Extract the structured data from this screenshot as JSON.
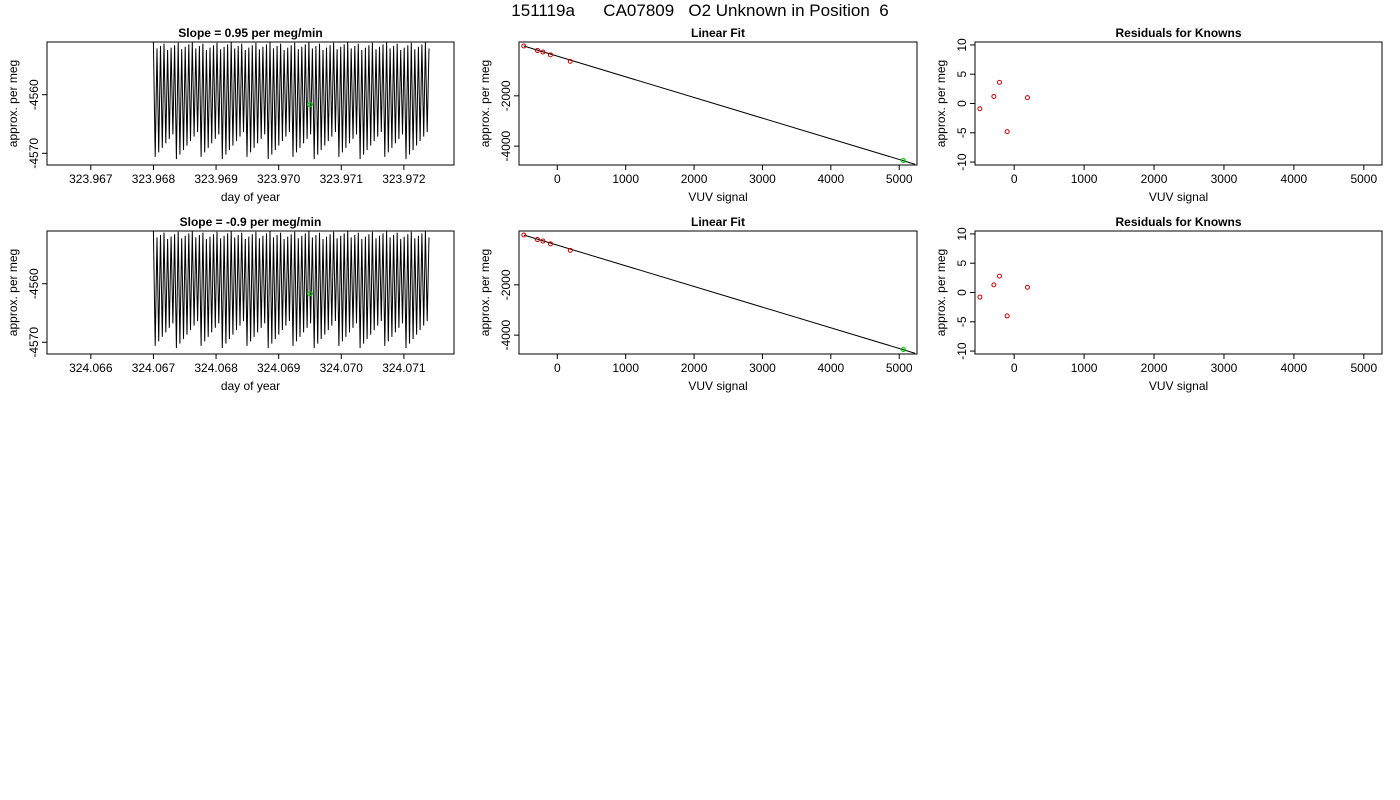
{
  "page": {
    "title": "151119a      CA07809   O2 Unknown in Position  6"
  },
  "colors": {
    "trace": "#000000",
    "unknown_point": "#00cc00",
    "known_point": "#cc0000",
    "frame": "#000000",
    "background": "#ffffff"
  },
  "chart_data": [
    {
      "type": "line",
      "title": "Slope =  0.95  per meg/min",
      "xlabel": "day of year",
      "ylabel": "approx. per meg",
      "xlim": [
        323.9663,
        323.9728
      ],
      "ylim": [
        -4572,
        -4551
      ],
      "x_ticks": [
        "323.967",
        "323.968",
        "323.969",
        "323.970",
        "323.971",
        "323.972"
      ],
      "y_ticks": [
        "-4560",
        "-4570"
      ],
      "series": [
        {
          "x_start": 323.968,
          "x_end": 323.9724,
          "oscillations": 78,
          "y_low": -4572,
          "y_high": -4551
        }
      ],
      "unknown_marker": {
        "x": 323.9705,
        "y": -4561.7
      }
    },
    {
      "type": "scatter",
      "title": "Linear Fit",
      "xlabel": "VUV signal",
      "ylabel": "approx. per meg",
      "xlim": [
        -560,
        5260
      ],
      "ylim": [
        -4750,
        140
      ],
      "x_ticks": [
        "0",
        "1000",
        "2000",
        "3000",
        "4000",
        "5000"
      ],
      "y_ticks": [
        "-2000",
        "-4000"
      ],
      "knowns": [
        {
          "x": -490,
          "y": -20
        },
        {
          "x": -290,
          "y": -200
        },
        {
          "x": -210,
          "y": -260
        },
        {
          "x": -100,
          "y": -370
        },
        {
          "x": 190,
          "y": -630
        }
      ],
      "fit_line": {
        "x": [
          -490,
          5230
        ],
        "y": [
          -20,
          -4720
        ]
      },
      "unknown": {
        "x": 5060,
        "y": -4570
      }
    },
    {
      "type": "scatter",
      "title": "Residuals for Knowns",
      "xlabel": "VUV signal",
      "ylabel": "approx. per meg",
      "xlim": [
        -560,
        5260
      ],
      "ylim": [
        -10.5,
        10.5
      ],
      "x_ticks": [
        "0",
        "1000",
        "2000",
        "3000",
        "4000",
        "5000"
      ],
      "y_ticks": [
        "-10",
        "-5",
        "0",
        "5",
        "10"
      ],
      "points": [
        {
          "x": -490,
          "y": -0.9
        },
        {
          "x": -290,
          "y": 1.2
        },
        {
          "x": -210,
          "y": 3.6
        },
        {
          "x": -100,
          "y": -4.8
        },
        {
          "x": 190,
          "y": 1.0
        }
      ]
    },
    {
      "type": "line",
      "title": "Slope =  -0.9  per meg/min",
      "xlabel": "day of year",
      "ylabel": "approx. per meg",
      "xlim": [
        324.0653,
        324.0718
      ],
      "ylim": [
        -4572,
        -4551
      ],
      "x_ticks": [
        "324.066",
        "324.067",
        "324.068",
        "324.069",
        "324.070",
        "324.071"
      ],
      "y_ticks": [
        "-4560",
        "-4570"
      ],
      "series": [
        {
          "x_start": 324.067,
          "x_end": 324.0714,
          "oscillations": 78,
          "y_low": -4572,
          "y_high": -4551
        }
      ],
      "unknown_marker": {
        "x": 324.0695,
        "y": -4561.7
      }
    },
    {
      "type": "scatter",
      "title": "Linear Fit",
      "xlabel": "VUV signal",
      "ylabel": "approx. per meg",
      "xlim": [
        -560,
        5260
      ],
      "ylim": [
        -4750,
        140
      ],
      "x_ticks": [
        "0",
        "1000",
        "2000",
        "3000",
        "4000",
        "5000"
      ],
      "y_ticks": [
        "-2000",
        "-4000"
      ],
      "knowns": [
        {
          "x": -490,
          "y": -20
        },
        {
          "x": -290,
          "y": -200
        },
        {
          "x": -210,
          "y": -260
        },
        {
          "x": -100,
          "y": -370
        },
        {
          "x": 190,
          "y": -630
        }
      ],
      "fit_line": {
        "x": [
          -490,
          5230
        ],
        "y": [
          -20,
          -4720
        ]
      },
      "unknown": {
        "x": 5060,
        "y": -4570
      }
    },
    {
      "type": "scatter",
      "title": "Residuals for Knowns",
      "xlabel": "VUV signal",
      "ylabel": "approx. per meg",
      "xlim": [
        -560,
        5260
      ],
      "ylim": [
        -10.5,
        10.5
      ],
      "x_ticks": [
        "0",
        "1000",
        "2000",
        "3000",
        "4000",
        "5000"
      ],
      "y_ticks": [
        "-10",
        "-5",
        "0",
        "5",
        "10"
      ],
      "points": [
        {
          "x": -490,
          "y": -0.8
        },
        {
          "x": -290,
          "y": 1.3
        },
        {
          "x": -210,
          "y": 2.8
        },
        {
          "x": -100,
          "y": -4.0
        },
        {
          "x": 190,
          "y": 0.9
        }
      ]
    }
  ]
}
